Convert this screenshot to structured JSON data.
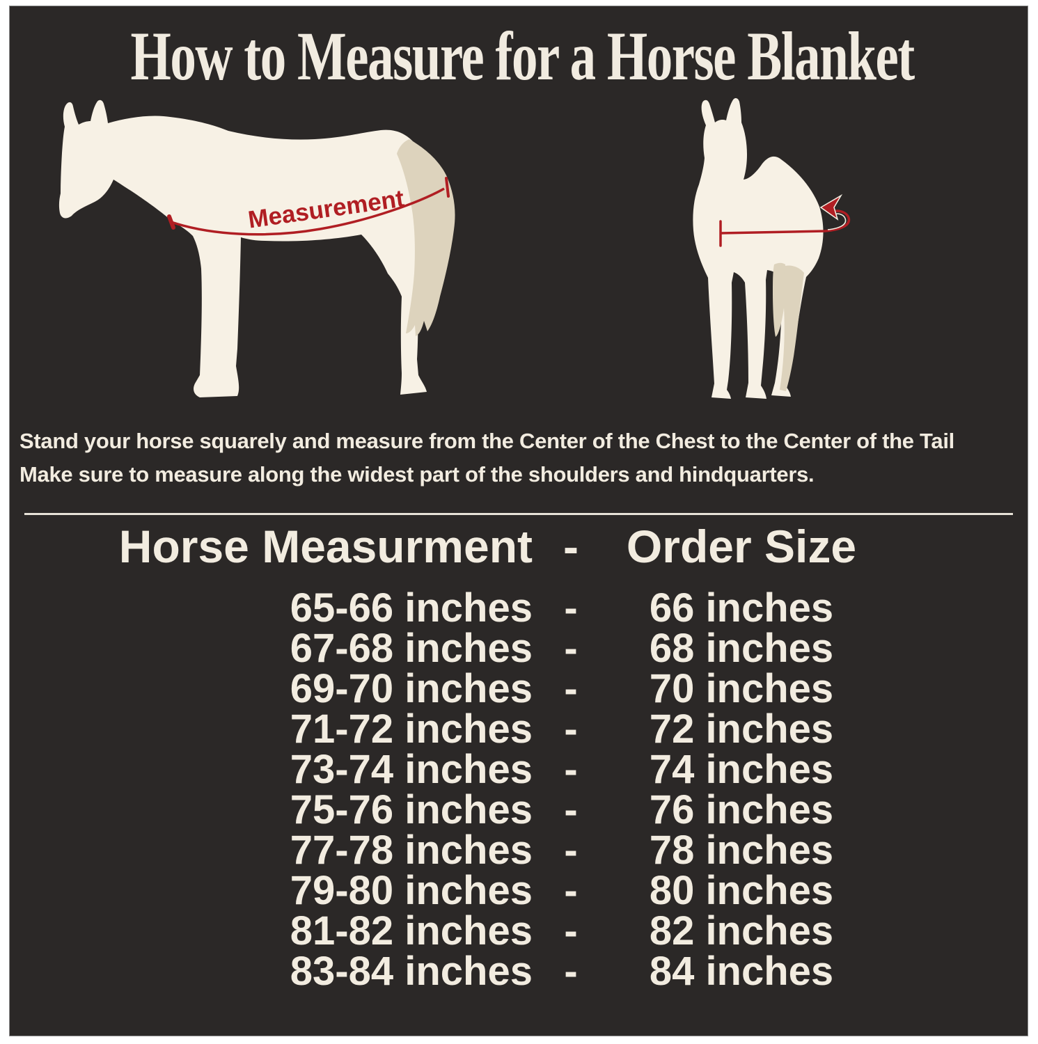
{
  "title": "How to Measure for a Horse Blanket",
  "illustrations": {
    "side_view": {
      "measurement_label": "Measurement"
    },
    "front_view": {
      "note": "girth-wrap arrow"
    }
  },
  "instructions": {
    "line1": "Stand your horse squarely and measure from the Center of the Chest to the Center of the Tail",
    "line2": "Make sure to measure along the widest part of the shoulders and hindquarters."
  },
  "size_chart": {
    "header": {
      "measurement_col": "Horse Measurment",
      "separator": "-",
      "order_col": "Order Size"
    },
    "rows": [
      {
        "measurement": "65-66 inches",
        "separator": "-",
        "order": "66 inches"
      },
      {
        "measurement": "67-68 inches",
        "separator": "-",
        "order": "68 inches"
      },
      {
        "measurement": "69-70 inches",
        "separator": "-",
        "order": "70 inches"
      },
      {
        "measurement": "71-72 inches",
        "separator": "-",
        "order": "72 inches"
      },
      {
        "measurement": "73-74 inches",
        "separator": "-",
        "order": "74 inches"
      },
      {
        "measurement": "75-76 inches",
        "separator": "-",
        "order": "76 inches"
      },
      {
        "measurement": "77-78 inches",
        "separator": "-",
        "order": "78 inches"
      },
      {
        "measurement": "79-80 inches",
        "separator": "-",
        "order": "80 inches"
      },
      {
        "measurement": "81-82 inches",
        "separator": "-",
        "order": "82 inches"
      },
      {
        "measurement": "83-84 inches",
        "separator": "-",
        "order": "84 inches"
      }
    ]
  },
  "chart_data": {
    "type": "table",
    "columns": [
      "Horse Measurment",
      "Order Size"
    ],
    "rows": [
      [
        "65-66 inches",
        "66 inches"
      ],
      [
        "67-68 inches",
        "68 inches"
      ],
      [
        "69-70 inches",
        "70 inches"
      ],
      [
        "71-72 inches",
        "72 inches"
      ],
      [
        "73-74 inches",
        "74 inches"
      ],
      [
        "75-76 inches",
        "76 inches"
      ],
      [
        "77-78 inches",
        "78 inches"
      ],
      [
        "79-80 inches",
        "80 inches"
      ],
      [
        "81-82 inches",
        "82 inches"
      ],
      [
        "83-84 inches",
        "84 inches"
      ]
    ]
  },
  "colors": {
    "panel_background": "#2b2827",
    "frame": "#ffffff",
    "cream_text": "#f2ece0",
    "horse_body": "#f7f1e5",
    "horse_tail_shadow": "#ddd3bd",
    "accent_red": "#b01e23"
  }
}
